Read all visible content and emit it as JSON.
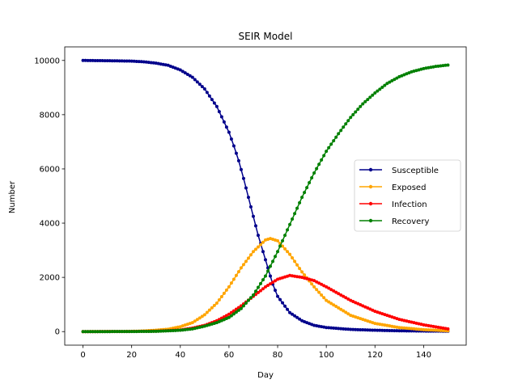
{
  "chart_data": {
    "type": "line",
    "title": "SEIR Model",
    "xlabel": "Day",
    "ylabel": "Number",
    "xlim": [
      -7.5,
      157.5
    ],
    "ylim": [
      -500,
      10500
    ],
    "xticks": [
      0,
      20,
      40,
      60,
      80,
      100,
      120,
      140
    ],
    "yticks": [
      0,
      2000,
      4000,
      6000,
      8000,
      10000
    ],
    "legend": "center-right",
    "days": 151,
    "series": [
      {
        "name": "Susceptible",
        "color": "#00008b",
        "x": [
          0,
          10,
          20,
          25,
          30,
          35,
          40,
          45,
          50,
          55,
          60,
          62,
          64,
          66,
          68,
          70,
          72,
          74,
          76,
          78,
          80,
          85,
          90,
          95,
          100,
          110,
          120,
          130,
          140,
          150
        ],
        "y": [
          10000,
          9990,
          9975,
          9950,
          9900,
          9820,
          9650,
          9380,
          8950,
          8300,
          7350,
          6850,
          6300,
          5650,
          4950,
          4250,
          3550,
          2950,
          2350,
          1750,
          1300,
          700,
          400,
          230,
          150,
          80,
          50,
          30,
          20,
          15
        ]
      },
      {
        "name": "Exposed",
        "color": "#ffa500",
        "x": [
          0,
          10,
          20,
          25,
          30,
          35,
          40,
          45,
          50,
          55,
          60,
          65,
          70,
          75,
          77,
          80,
          85,
          90,
          95,
          100,
          110,
          120,
          130,
          140,
          150
        ],
        "y": [
          0,
          5,
          10,
          25,
          50,
          90,
          180,
          330,
          620,
          1050,
          1650,
          2350,
          2950,
          3380,
          3430,
          3350,
          2850,
          2200,
          1650,
          1150,
          600,
          300,
          150,
          70,
          30
        ]
      },
      {
        "name": "Infection",
        "color": "#ff0000",
        "x": [
          0,
          10,
          20,
          30,
          40,
          45,
          50,
          55,
          60,
          65,
          70,
          75,
          80,
          85,
          90,
          95,
          100,
          110,
          120,
          130,
          140,
          150
        ],
        "y": [
          0,
          2,
          5,
          15,
          60,
          130,
          230,
          400,
          640,
          950,
          1300,
          1650,
          1930,
          2070,
          2000,
          1880,
          1650,
          1150,
          750,
          450,
          250,
          100
        ]
      },
      {
        "name": "Recovery",
        "color": "#008000",
        "x": [
          0,
          10,
          20,
          30,
          40,
          45,
          50,
          55,
          60,
          65,
          70,
          75,
          80,
          85,
          90,
          95,
          100,
          105,
          110,
          115,
          120,
          125,
          130,
          135,
          140,
          145,
          150
        ],
        "y": [
          0,
          1,
          3,
          10,
          50,
          100,
          200,
          330,
          520,
          850,
          1350,
          2050,
          2950,
          3950,
          4950,
          5850,
          6650,
          7300,
          7900,
          8400,
          8800,
          9150,
          9400,
          9580,
          9700,
          9780,
          9830
        ]
      }
    ]
  }
}
